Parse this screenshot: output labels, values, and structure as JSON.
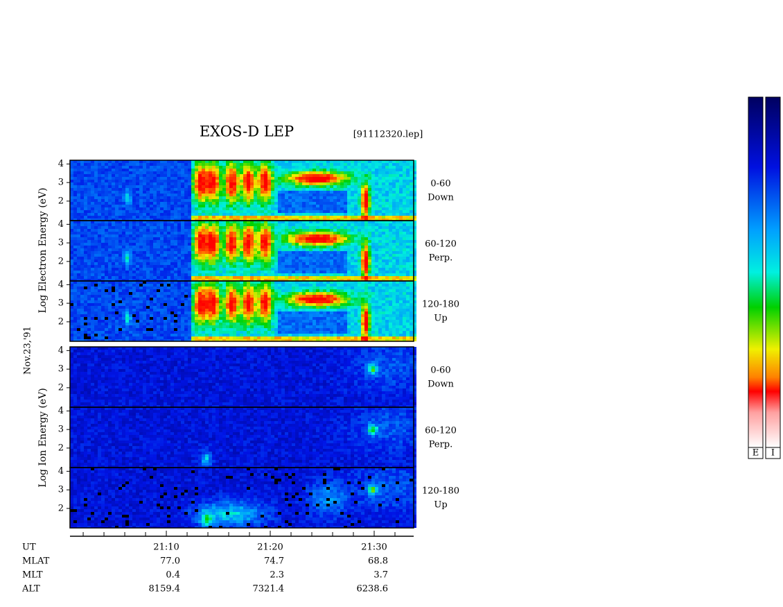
{
  "title": "EXOS-D LEP",
  "file": "[91112320.lep]",
  "date": "Nov.23,'91",
  "groups": [
    {
      "axis_label": "Log Electron Energy (eV)",
      "panels": [
        [
          "0-60",
          "Down"
        ],
        [
          "60-120",
          "Perp."
        ],
        [
          "120-180",
          "Up"
        ]
      ]
    },
    {
      "axis_label": "Log Ion Energy (eV)",
      "panels": [
        [
          "0-60",
          "Down"
        ],
        [
          "60-120",
          "Perp."
        ],
        [
          "120-180",
          "Up"
        ]
      ]
    }
  ],
  "ylim": [
    0.95,
    4.2
  ],
  "yticks": [
    2,
    3,
    4
  ],
  "xlim": [
    0.73,
    33.8
  ],
  "xticks": [
    {
      "value": 10,
      "label": "21:10"
    },
    {
      "value": 20,
      "label": "21:20"
    },
    {
      "value": 30,
      "label": "21:30"
    }
  ],
  "minor_xticks": [
    2,
    4,
    6,
    8,
    12,
    14,
    16,
    18,
    22,
    24,
    26,
    28,
    32
  ],
  "ephemeris": {
    "time_label": "UT",
    "rows": [
      {
        "label": "MLAT",
        "values": [
          "77.0",
          "74.7",
          "68.8"
        ]
      },
      {
        "label": "MLT",
        "values": [
          "0.4",
          "2.3",
          "3.7"
        ]
      },
      {
        "label": "ALT",
        "values": [
          "8159.4",
          "7321.4",
          "6238.6"
        ]
      }
    ]
  },
  "colorbars": [
    "E",
    "I"
  ]
}
